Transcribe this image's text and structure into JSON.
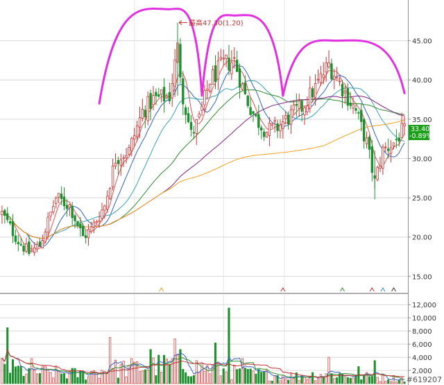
{
  "chart_data": [
    {
      "type": "candlestick",
      "title": "",
      "x_count": 150,
      "ylim": [
        13,
        50
      ],
      "yticks": [
        "15.00",
        "20.00",
        "25.00",
        "30.00",
        "35.00",
        "40.00",
        "45.00"
      ],
      "grid": true,
      "price_path": [
        {
          "x": 0,
          "y": 23.0
        },
        {
          "x": 6,
          "y": 19.5
        },
        {
          "x": 10,
          "y": 18.0
        },
        {
          "x": 14,
          "y": 19.0
        },
        {
          "x": 20,
          "y": 25.0
        },
        {
          "x": 25,
          "y": 24.0
        },
        {
          "x": 30,
          "y": 20.0
        },
        {
          "x": 33,
          "y": 21.0
        },
        {
          "x": 38,
          "y": 24.0
        },
        {
          "x": 42,
          "y": 30.0
        },
        {
          "x": 47,
          "y": 31.0
        },
        {
          "x": 52,
          "y": 36.0
        },
        {
          "x": 56,
          "y": 37.5
        },
        {
          "x": 62,
          "y": 38.0
        },
        {
          "x": 65,
          "y": 44.0
        },
        {
          "x": 67,
          "y": 38.0
        },
        {
          "x": 70,
          "y": 33.0
        },
        {
          "x": 73,
          "y": 35.0
        },
        {
          "x": 77,
          "y": 40.0
        },
        {
          "x": 82,
          "y": 42.0
        },
        {
          "x": 86,
          "y": 42.5
        },
        {
          "x": 90,
          "y": 38.0
        },
        {
          "x": 94,
          "y": 35.0
        },
        {
          "x": 98,
          "y": 33.5
        },
        {
          "x": 102,
          "y": 34.0
        },
        {
          "x": 107,
          "y": 35.5
        },
        {
          "x": 111,
          "y": 36.5
        },
        {
          "x": 116,
          "y": 39.0
        },
        {
          "x": 121,
          "y": 42.0
        },
        {
          "x": 126,
          "y": 39.0
        },
        {
          "x": 131,
          "y": 36.0
        },
        {
          "x": 135,
          "y": 32.0
        },
        {
          "x": 138,
          "y": 27.0
        },
        {
          "x": 141,
          "y": 31.0
        },
        {
          "x": 145,
          "y": 32.0
        },
        {
          "x": 148,
          "y": 33.4
        }
      ],
      "moving_average_series": [
        {
          "color": "#e05050",
          "period": 5
        },
        {
          "color": "#3060c0",
          "period": 10
        },
        {
          "color": "#3aa0b0",
          "period": 20
        },
        {
          "color": "#2e8b2e",
          "period": 40
        },
        {
          "color": "#802080",
          "period": 60
        },
        {
          "color": "#f0a020",
          "period": 120
        }
      ],
      "annotations": [
        {
          "text": "最高47.30(1.20)",
          "x": 65,
          "y": 47.3,
          "color": "#c03030"
        }
      ],
      "last_price_badge": {
        "price": "33.40",
        "change": "-0.89%",
        "y": 33.4,
        "color": "#19a019"
      },
      "overlay": {
        "shape": "three-arches",
        "color": "#e030e0",
        "arches": [
          {
            "x_start": 36,
            "x_peak": 62,
            "x_end": 74,
            "y_start": 37,
            "y_peak": 49,
            "y_end": 38
          },
          {
            "x_start": 74,
            "x_peak": 86,
            "x_end": 104,
            "y_start": 38,
            "y_peak": 48.2,
            "y_end": 38
          },
          {
            "x_start": 104,
            "x_peak": 124,
            "x_end": 149,
            "y_start": 38,
            "y_peak": 45,
            "y_end": 38.3
          }
        ]
      },
      "event_markers": [
        {
          "x": 59,
          "color": "#e0a020"
        },
        {
          "x": 104,
          "color": "#c03030"
        },
        {
          "x": 126,
          "color": "#2e8b2e"
        },
        {
          "x": 137,
          "color": "#c03030"
        },
        {
          "x": 141,
          "color": "#3090d0"
        },
        {
          "x": 145,
          "color": "#303030"
        }
      ]
    },
    {
      "type": "bar",
      "title": "",
      "x_count": 150,
      "ylim": [
        0,
        13500
      ],
      "yticks": [
        "2,000",
        "4,000",
        "6,000",
        "8,000",
        "10,000",
        "12,000"
      ],
      "volume_path": [
        {
          "x": 0,
          "y": 2500
        },
        {
          "x": 10,
          "y": 1800
        },
        {
          "x": 20,
          "y": 1600
        },
        {
          "x": 30,
          "y": 1400
        },
        {
          "x": 40,
          "y": 2200
        },
        {
          "x": 50,
          "y": 2400
        },
        {
          "x": 60,
          "y": 2800
        },
        {
          "x": 70,
          "y": 2600
        },
        {
          "x": 80,
          "y": 2000
        },
        {
          "x": 90,
          "y": 1500
        },
        {
          "x": 100,
          "y": 1300
        },
        {
          "x": 110,
          "y": 1100
        },
        {
          "x": 120,
          "y": 1500
        },
        {
          "x": 130,
          "y": 1200
        },
        {
          "x": 140,
          "y": 900
        },
        {
          "x": 149,
          "y": 700
        }
      ],
      "spikes": [
        {
          "x": 2,
          "y": 8500
        },
        {
          "x": 11,
          "y": 3800
        },
        {
          "x": 40,
          "y": 7000
        },
        {
          "x": 55,
          "y": 5200
        },
        {
          "x": 64,
          "y": 6800
        },
        {
          "x": 66,
          "y": 5200
        },
        {
          "x": 79,
          "y": 6200
        },
        {
          "x": 84,
          "y": 11500
        },
        {
          "x": 89,
          "y": 3800
        },
        {
          "x": 121,
          "y": 4000
        },
        {
          "x": 132,
          "y": 2600
        },
        {
          "x": 138,
          "y": 3500
        }
      ],
      "ma_colors": [
        "#3060c0",
        "#2e8b2e",
        "#c03030"
      ],
      "watermark": "#619207"
    }
  ]
}
